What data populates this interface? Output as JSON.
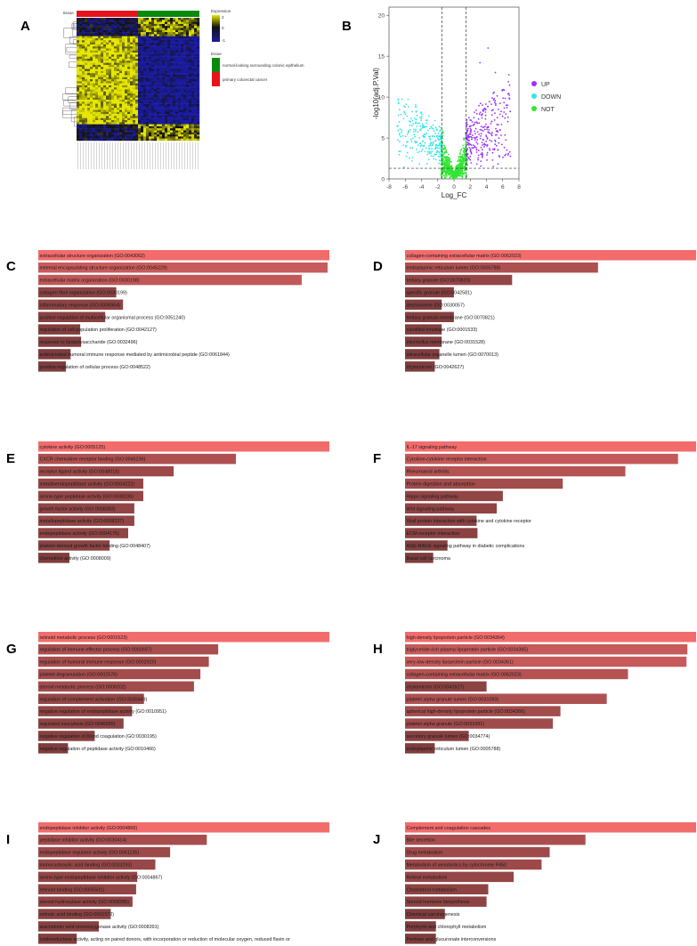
{
  "panels": {
    "A": {
      "label": "A"
    },
    "B": {
      "label": "B"
    },
    "C": {
      "label": "C"
    },
    "D": {
      "label": "D"
    },
    "E": {
      "label": "E"
    },
    "F": {
      "label": "F"
    },
    "G": {
      "label": "G"
    },
    "H": {
      "label": "H"
    },
    "I": {
      "label": "I"
    },
    "J": {
      "label": "J"
    }
  },
  "heatmap": {
    "tissue_label": "tissue",
    "legend_expression_title": "Expression",
    "legend_ticks": [
      "2",
      "0",
      "-1"
    ],
    "legend_tissue_title": "tissue",
    "legend_items": [
      "normal-looking surrounding colonic epithelium",
      "primary colorectal cancer"
    ],
    "colors": {
      "normal": "#0a8a0a",
      "cancer": "#e8121b",
      "high": "#e6e600",
      "low": "#1a1a9e"
    }
  },
  "chart_data": [
    {
      "id": "B",
      "type": "scatter",
      "title": "",
      "xlabel": "Log_FC",
      "ylabel": "-log10(adj.P.Val)",
      "xlim": [
        -8,
        8
      ],
      "ylim": [
        0,
        21
      ],
      "xticks": [
        "-8",
        "-6",
        "-4",
        "-2",
        "0",
        "2",
        "4",
        "6",
        "8"
      ],
      "yticks": [
        "0",
        "5",
        "10",
        "15",
        "20"
      ],
      "legend": [
        "UP",
        "DOWN",
        "NOT"
      ],
      "colors": {
        "UP": "#9933ff",
        "DOWN": "#33e6e6",
        "NOT": "#33e633"
      },
      "thresholds": {
        "logfc": [
          -1.5,
          1.5
        ],
        "neglog10p": 1.3
      }
    },
    {
      "id": "C",
      "type": "bar",
      "categories": [
        "extracellular structure organization (GO:0043062)",
        "external encapsulating structure organization (GO:0045229)",
        "extracellular matrix organization (GO:0030198)",
        "collagen fibril organization (GO:0030199)",
        "inflammatory response (GO:0006954)",
        "positive regulation of multicellular organismal process (GO:0051240)",
        "regulation of cell population proliferation (GO:0042127)",
        "response to lipopolysaccharide (GO:0032496)",
        "antimicrobial humoral immune response mediated by antimicrobial peptide (GO:0061844)",
        "positive regulation of cellular process (GO:0048522)"
      ],
      "values": [
        100,
        99.4,
        90.5,
        26.8,
        29.1,
        23.0,
        14.4,
        14.7,
        11.1,
        9.5
      ]
    },
    {
      "id": "D",
      "type": "bar",
      "categories": [
        "collagen-containing extracellular matrix (GO:0062023)",
        "endoplasmic reticulum lumen (GO:0005788)",
        "tertiary granule (GO:0070820)",
        "specific granule (GO:0042581)",
        "desmosome (GO:0030057)",
        "tertiary granule membrane (GO:0070821)",
        "cornified envelope (GO:0001533)",
        "microvillus membrane (GO:0031528)",
        "intracellular organelle lumen (GO:0070013)",
        "chylomicron (GO:0042627)"
      ],
      "values": [
        100,
        66.3,
        36.8,
        16.8,
        12.6,
        16.8,
        12.6,
        12.6,
        11.8,
        10.2
      ]
    },
    {
      "id": "E",
      "type": "bar",
      "categories": [
        "cytokine activity (GO:0005125)",
        "CXCR chemokine receptor binding (GO:0045236)",
        "receptor ligand activity (GO:0048018)",
        "metalloendopeptidase activity (GO:0004222)",
        "serine-type peptidase activity (GO:0008236)",
        "growth factor activity (GO:0008083)",
        "metallopeptidase activity (GO:0008237)",
        "endopeptidase activity (GO:0004175)",
        "platelet-derived growth factor binding (GO:0048407)",
        "chemokine activity (GO:0008009)"
      ],
      "values": [
        100,
        67.9,
        46.5,
        36.1,
        36.1,
        33.0,
        33.0,
        30.9,
        24.5,
        10.7
      ]
    },
    {
      "id": "F",
      "type": "bar",
      "categories": [
        "IL-17 signaling pathway",
        "Cytokine-cytokine receptor interaction",
        "Rheumatoid arthritis",
        "Protein digestion and absorption",
        "Hippo signaling pathway",
        "Wnt signaling pathway",
        "Viral protein interaction with cytokine and cytokine receptor",
        "ECM-receptor interaction",
        "AGE-RAGE signaling pathway in diabetic complications",
        "Basal cell carcinoma"
      ],
      "values": [
        100,
        93.8,
        75.7,
        54.2,
        33.6,
        31.5,
        24.6,
        24.9,
        14.6,
        9.7
      ]
    },
    {
      "id": "G",
      "type": "bar",
      "categories": [
        "retinoid metabolic process (GO:0001523)",
        "regulation of immune effector process (GO:0002697)",
        "regulation of humoral immune response (GO:0002920)",
        "platelet degranulation (GO:0002576)",
        "steroid metabolic process (GO:0008202)",
        "regulation of complement activation (GO:0030449)",
        "negative regulation of endopeptidase activity (GO:0010951)",
        "regulated exocytosis (GO:0045055)",
        "negative regulation of blood coagulation (GO:0030195)",
        "negative regulation of peptidase activity (GO:0010466)"
      ],
      "values": [
        100,
        61.8,
        58.6,
        55.7,
        53.5,
        36.3,
        32.2,
        29.3,
        19.4,
        10.2
      ]
    },
    {
      "id": "H",
      "type": "bar",
      "categories": [
        "high-density lipoprotein particle (GO:0034364)",
        "triglyceride-rich plasma lipoprotein particle (GO:0034385)",
        "very-low-density lipoprotein particle (GO:0034361)",
        "collagen-containing extracellular matrix (GO:0062023)",
        "chylomicron (GO:0042627)",
        "platelet alpha granule lumen (GO:0031093)",
        "spherical high-density lipoprotein particle (GO:0034366)",
        "platelet alpha granule (GO:0031091)",
        "secretory granule lumen (GO:0034774)",
        "endoplasmic reticulum lumen (GO:0005788)"
      ],
      "values": [
        100,
        97.0,
        96.7,
        76.6,
        28.0,
        69.3,
        53.4,
        50.8,
        21.9,
        10.2
      ]
    },
    {
      "id": "I",
      "type": "bar",
      "categories": [
        "endopeptidase inhibitor activity (GO:0004866)",
        "peptidase inhibitor activity (GO:0030414)",
        "endopeptidase regulator activity (GO:0061135)",
        "monocarboxylic acid binding (GO:0033293)",
        "serine-type endopeptidase inhibitor activity (GO:0004867)",
        "retinoid binding (GO:0005501)",
        "steroid hydroxylase activity (GO:0008395)",
        "retinoic acid binding (GO:0001972)",
        "arachidonic acid monooxygenase activity (GO:0008391)",
        "oxidoreductase activity, acting on paired donors, with incorporation or reduction of molecular oxygen, reduced flavin or"
      ],
      "values": [
        100,
        57.9,
        45.3,
        40.2,
        34.0,
        33.6,
        32.4,
        24.9,
        20.8,
        13.2
      ]
    },
    {
      "id": "J",
      "type": "bar",
      "categories": [
        "Complement and coagulation cascades",
        "Bile secretion",
        "Drug metabolism",
        "Metabolism of xenobiotics by cytochrome P450",
        "Retinol metabolism",
        "Cholesterol metabolism",
        "Steroid hormone biosynthesis",
        "Chemical carcinogenesis",
        "Porphyrin and chlorophyll metabolism",
        "Pentose and glucuronate interconversions"
      ],
      "values": [
        100,
        62.0,
        49.7,
        46.9,
        37.3,
        28.6,
        28.0,
        13.7,
        10.6,
        10.6
      ]
    }
  ]
}
